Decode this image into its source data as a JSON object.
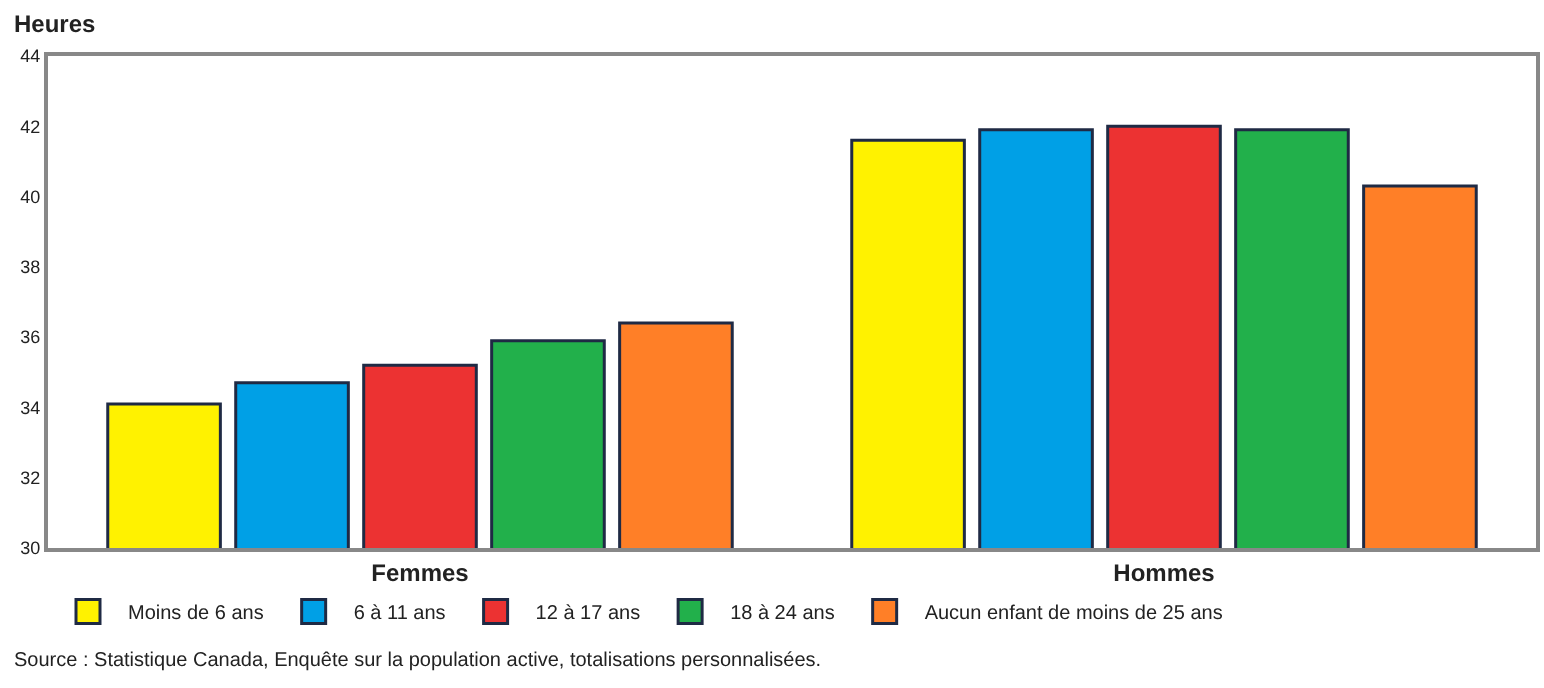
{
  "chart_data": {
    "type": "bar",
    "ylabel": "Heures",
    "categories": [
      "Femmes",
      "Hommes"
    ],
    "series": [
      {
        "name": "Moins de 6 ans",
        "color": "#fff200",
        "values": [
          34.1,
          41.6
        ]
      },
      {
        "name": "6 à 11 ans",
        "color": "#00a0e6",
        "values": [
          34.7,
          41.9
        ]
      },
      {
        "name": "12 à 17 ans",
        "color": "#ec3232",
        "values": [
          35.2,
          42.0
        ]
      },
      {
        "name": "18 à 24 ans",
        "color": "#22b04b",
        "values": [
          35.9,
          41.9
        ]
      },
      {
        "name": "Aucun enfant de moins de 25 ans",
        "color": "#ff7f27",
        "values": [
          36.4,
          40.3
        ]
      }
    ],
    "ylim": [
      30,
      44
    ],
    "yticks": [
      30,
      32,
      34,
      36,
      38,
      40,
      42,
      44
    ],
    "grid": false,
    "legend": "bottom",
    "annotations": [
      "Source : Statistique Canada, Enquête sur la population active, totalisations personnalisées."
    ]
  }
}
